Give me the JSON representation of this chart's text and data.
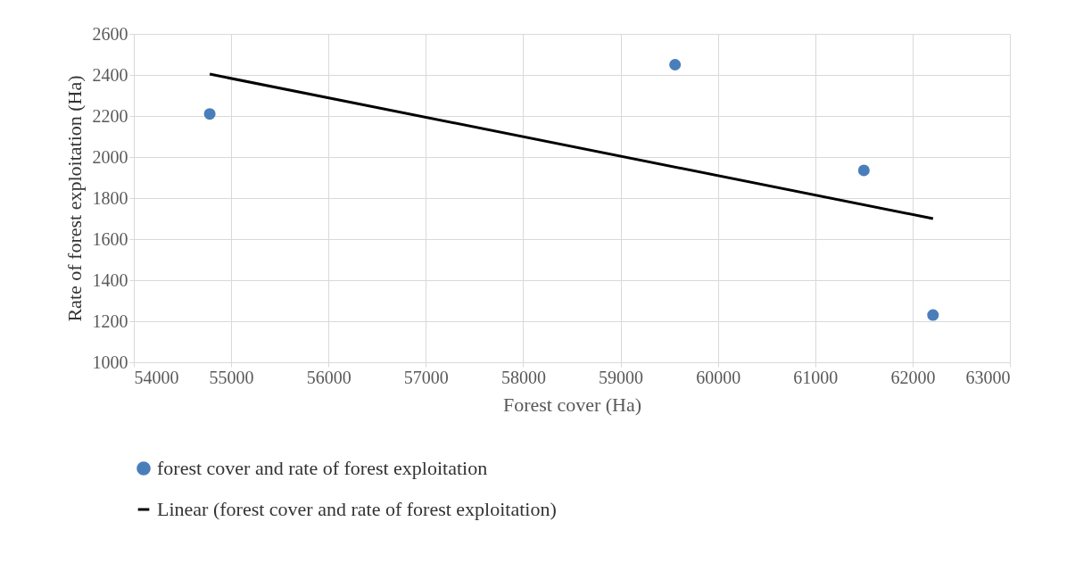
{
  "chart_data": {
    "type": "scatter",
    "xlabel": "Forest cover (Ha)",
    "ylabel": "Rate of forest exploitation (Ha)",
    "xlim": [
      54000,
      63000
    ],
    "xticks": [
      54000,
      55000,
      56000,
      57000,
      58000,
      59000,
      60000,
      61000,
      62000,
      63000
    ],
    "ylim": [
      1000,
      2600
    ],
    "yticks": [
      1000,
      1200,
      1400,
      1600,
      1800,
      2000,
      2200,
      2400,
      2600
    ],
    "grid": true,
    "legend": "bottom",
    "series": [
      {
        "name": "forest cover and rate of forest exploitation",
        "marker": "circle",
        "color": "#4a7ebb",
        "x": [
          54780,
          59560,
          61500,
          62210
        ],
        "values": [
          2210,
          2450,
          1935,
          1230
        ]
      },
      {
        "name": "Linear (forest cover and rate of forest exploitation)",
        "type": "line",
        "color": "#000000",
        "x": [
          54780,
          62210
        ],
        "values": [
          2404,
          1700
        ]
      }
    ]
  }
}
